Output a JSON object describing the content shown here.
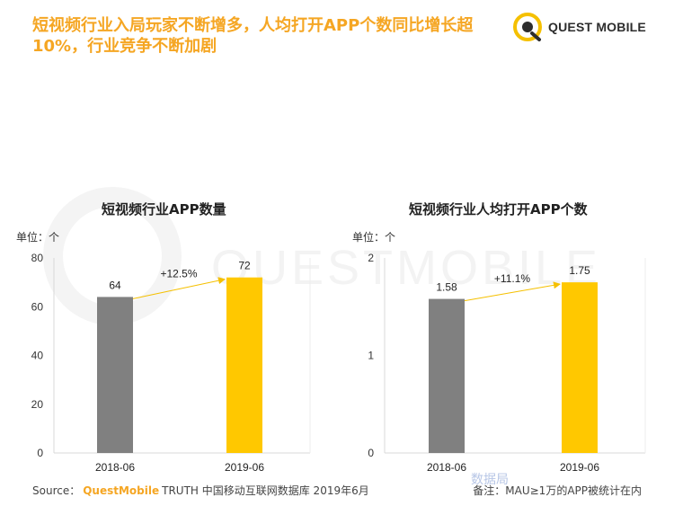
{
  "header": {
    "headline": "短视频行业入局玩家不断增多，人均打开APP个数同比增长超10%，行业竞争不断加剧",
    "logo_text": "QUEST MOBILE"
  },
  "watermark": {
    "text": "QUESTMOBILE"
  },
  "footer": {
    "source_prefix": "Source：",
    "source_brand": "QuestMobile",
    "source_rest": "TRUTH 中国移动互联网数据库 2019年6月",
    "note": "备注：MAU≥1万的APP被统计在内",
    "site_mark": "数据局"
  },
  "colors": {
    "accent": "#f5a623",
    "bar_2018": "#808080",
    "bar_2019": "#ffc800",
    "arrow": "#f5c000"
  },
  "chart_data": [
    {
      "type": "bar",
      "title": "短视频行业APP数量",
      "unit": "单位：个",
      "categories": [
        "2018-06",
        "2019-06"
      ],
      "values": [
        64,
        72
      ],
      "value_labels": [
        "64",
        "72"
      ],
      "ylim": [
        0,
        80
      ],
      "yticks": [
        "0",
        "20",
        "40",
        "60",
        "80"
      ],
      "growth_label": "+12.5%"
    },
    {
      "type": "bar",
      "title": "短视频行业人均打开APP个数",
      "unit": "单位：个",
      "categories": [
        "2018-06",
        "2019-06"
      ],
      "values": [
        1.58,
        1.75
      ],
      "value_labels": [
        "1.58",
        "1.75"
      ],
      "ylim": [
        0,
        2
      ],
      "yticks": [
        "0",
        "1",
        "2"
      ],
      "growth_label": "+11.1%"
    }
  ]
}
